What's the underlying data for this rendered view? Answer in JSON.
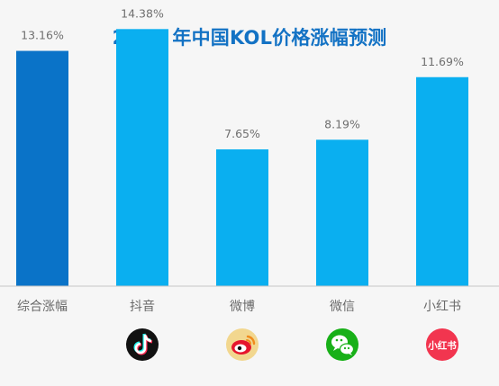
{
  "chart_data": {
    "type": "bar",
    "title": "2024 年中国KOL价格涨幅预测",
    "categories": [
      "综合涨幅",
      "抖音",
      "微博",
      "微信",
      "小红书"
    ],
    "values": [
      13.16,
      14.38,
      7.65,
      8.19,
      11.69
    ],
    "value_labels": [
      "13.16%",
      "14.38%",
      "7.65%",
      "8.19%",
      "11.69%"
    ],
    "units": "%",
    "ylim": [
      0,
      15
    ],
    "grid": false,
    "legend": "none",
    "xlabel": "",
    "ylabel": "",
    "bar_colors": [
      "#0a73c8",
      "#0aaff0",
      "#0aaff0",
      "#0aaff0",
      "#0aaff0"
    ],
    "axis_color": "#c7c7c7",
    "platform_icons": [
      {
        "category": "抖音",
        "icon": "douyin-icon",
        "bg": "#111111"
      },
      {
        "category": "微博",
        "icon": "weibo-icon",
        "bg": "#f2d78f"
      },
      {
        "category": "微信",
        "icon": "wechat-icon",
        "bg": "#18b018"
      },
      {
        "category": "小红书",
        "icon": "xiaohongshu-icon",
        "bg": "#f2354f",
        "logo_text": "小红书"
      }
    ]
  }
}
